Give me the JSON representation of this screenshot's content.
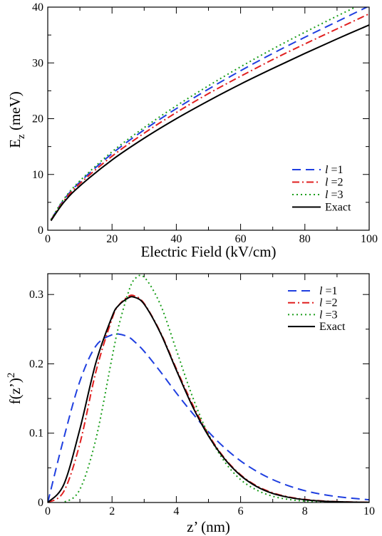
{
  "chart_data": [
    {
      "type": "line",
      "xlabel": "Electric Field (kV/cm)",
      "ylabel_main": "E",
      "ylabel_sub": "z",
      "ylabel_rest": " (meV)",
      "xlim": [
        0,
        100
      ],
      "ylim": [
        0,
        40
      ],
      "xticks": [
        0,
        20,
        40,
        60,
        80,
        100
      ],
      "yticks": [
        0,
        10,
        20,
        30,
        40
      ],
      "legend_position": "lower-right",
      "grid": false,
      "x": [
        1,
        5,
        10,
        20,
        30,
        40,
        50,
        60,
        70,
        80,
        90,
        100
      ],
      "series": [
        {
          "name_italic": "l",
          "name_rest": " =1",
          "color": "#1f3fe0",
          "dash": "12,7",
          "values": [
            1.86,
            5.45,
            8.65,
            13.73,
            18.0,
            21.8,
            25.3,
            28.6,
            31.7,
            34.6,
            37.4,
            40.2
          ]
        },
        {
          "name_italic": "l",
          "name_rest": " =2",
          "color": "#e01f1f",
          "dash": "10,4,2,4",
          "values": [
            1.8,
            5.27,
            8.36,
            13.27,
            17.4,
            21.1,
            24.5,
            27.6,
            30.6,
            33.4,
            36.1,
            38.8
          ]
        },
        {
          "name_italic": "l",
          "name_rest": " =3",
          "color": "#1a9e1a",
          "dash": "2,4",
          "values": [
            1.91,
            5.58,
            8.86,
            14.07,
            18.4,
            22.3,
            25.9,
            29.3,
            32.5,
            35.5,
            38.4,
            41.2
          ]
        },
        {
          "name_italic": "",
          "name_rest": "Exact",
          "color": "#000000",
          "dash": "",
          "values": [
            1.71,
            5.0,
            7.94,
            12.6,
            16.5,
            20.0,
            23.2,
            26.2,
            29.0,
            31.7,
            34.3,
            36.8
          ]
        }
      ]
    },
    {
      "type": "line",
      "xlabel": "z’ (nm)",
      "ylabel_main": "f(z’)",
      "ylabel_sup": "2",
      "xlim": [
        0,
        10
      ],
      "ylim": [
        0,
        0.33
      ],
      "xticks": [
        0,
        2,
        4,
        6,
        8,
        10
      ],
      "yticks": [
        0,
        0.1,
        0.2,
        0.3
      ],
      "ytick_labels": [
        "0",
        "0.1",
        "0.2",
        "0.3"
      ],
      "legend_position": "top-right",
      "grid": false,
      "x": [
        0,
        0.5,
        1,
        1.5,
        2,
        2.2,
        2.5,
        2.7,
        3,
        3.5,
        4,
        4.5,
        5,
        5.5,
        6,
        6.5,
        7,
        7.5,
        8,
        8.5,
        9,
        9.5,
        10
      ],
      "series": [
        {
          "name_italic": "l",
          "name_rest": " =1",
          "color": "#1f3fe0",
          "dash": "12,7",
          "values": [
            0,
            0.093,
            0.175,
            0.226,
            0.242,
            0.243,
            0.239,
            0.232,
            0.218,
            0.189,
            0.158,
            0.129,
            0.102,
            0.079,
            0.06,
            0.045,
            0.033,
            0.024,
            0.017,
            0.012,
            0.0085,
            0.006,
            0.004
          ]
        },
        {
          "name_italic": "l",
          "name_rest": " =2",
          "color": "#e01f1f",
          "dash": "10,4,2,4",
          "values": [
            0,
            0.016,
            0.085,
            0.189,
            0.265,
            0.284,
            0.297,
            0.298,
            0.287,
            0.246,
            0.193,
            0.142,
            0.098,
            0.064,
            0.04,
            0.024,
            0.014,
            0.008,
            0.0045,
            0.0024,
            0.0013,
            0.0007,
            0.0003
          ]
        },
        {
          "name_italic": "l",
          "name_rest": " =3",
          "color": "#1a9e1a",
          "dash": "2,4",
          "values": [
            0,
            0.0005,
            0.019,
            0.092,
            0.209,
            0.253,
            0.302,
            0.322,
            0.325,
            0.286,
            0.22,
            0.153,
            0.098,
            0.059,
            0.033,
            0.018,
            0.009,
            0.0044,
            0.002,
            0.0009,
            0.0004,
            0.0002,
            0.0001
          ]
        },
        {
          "name_italic": "",
          "name_rest": "Exact",
          "color": "#000000",
          "dash": "",
          "values": [
            0,
            0.026,
            0.106,
            0.202,
            0.268,
            0.284,
            0.295,
            0.296,
            0.286,
            0.245,
            0.191,
            0.139,
            0.096,
            0.063,
            0.039,
            0.023,
            0.013,
            0.0074,
            0.004,
            0.0021,
            0.0011,
            0.0005,
            0.0002
          ]
        }
      ]
    }
  ]
}
